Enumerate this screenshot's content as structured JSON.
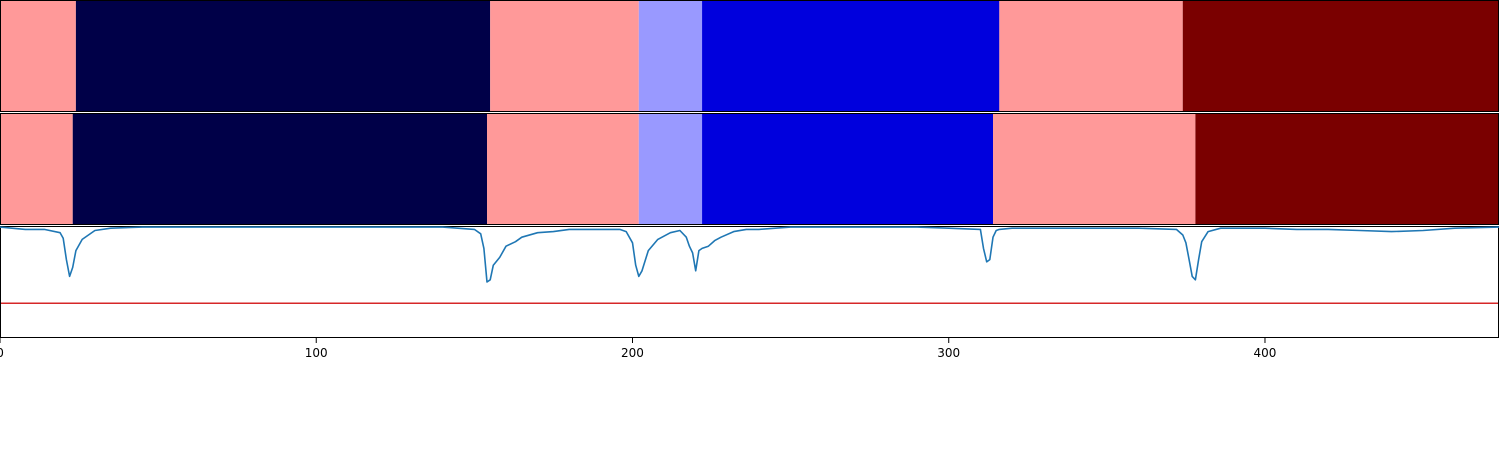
{
  "chart_data": [
    {
      "type": "heatmap",
      "panel": "top-band",
      "segments": [
        {
          "start": 0,
          "end": 24,
          "color": "#ff9999"
        },
        {
          "start": 24,
          "end": 155,
          "color": "#000048"
        },
        {
          "start": 155,
          "end": 202,
          "color": "#ff9999"
        },
        {
          "start": 202,
          "end": 222,
          "color": "#9999ff"
        },
        {
          "start": 222,
          "end": 316,
          "color": "#0000dd"
        },
        {
          "start": 316,
          "end": 374,
          "color": "#ff9999"
        },
        {
          "start": 374,
          "end": 474,
          "color": "#7a0000"
        }
      ]
    },
    {
      "type": "heatmap",
      "panel": "middle-band",
      "segments": [
        {
          "start": 0,
          "end": 23,
          "color": "#ff9999"
        },
        {
          "start": 23,
          "end": 154,
          "color": "#000048"
        },
        {
          "start": 154,
          "end": 202,
          "color": "#ff9999"
        },
        {
          "start": 202,
          "end": 222,
          "color": "#9999ff"
        },
        {
          "start": 222,
          "end": 314,
          "color": "#0000dd"
        },
        {
          "start": 314,
          "end": 378,
          "color": "#ff9999"
        },
        {
          "start": 378,
          "end": 474,
          "color": "#7a0000"
        }
      ]
    },
    {
      "type": "line",
      "panel": "signal",
      "xlim": [
        0,
        474
      ],
      "ylim": [
        0,
        1
      ],
      "threshold": 0.31,
      "threshold_color": "#d62728",
      "line_color": "#1f77b4",
      "x": [
        0,
        8,
        14,
        19,
        20,
        21,
        22,
        23,
        24,
        26,
        30,
        35,
        45,
        60,
        80,
        100,
        120,
        140,
        150,
        152,
        153,
        154,
        155,
        156,
        158,
        160,
        163,
        165,
        170,
        175,
        180,
        190,
        196,
        198,
        200,
        201,
        202,
        203,
        205,
        208,
        212,
        215,
        217,
        218,
        219,
        220,
        221,
        222,
        224,
        226,
        228,
        232,
        236,
        240,
        250,
        270,
        290,
        300,
        310,
        311,
        312,
        313,
        314,
        315,
        316,
        320,
        340,
        360,
        372,
        374,
        375,
        376,
        377,
        378,
        379,
        380,
        382,
        386,
        400,
        410,
        420,
        430,
        440,
        450,
        460,
        474
      ],
      "y": [
        0.99,
        0.97,
        0.97,
        0.94,
        0.89,
        0.7,
        0.55,
        0.63,
        0.78,
        0.88,
        0.96,
        0.98,
        0.99,
        0.99,
        0.99,
        0.99,
        0.99,
        0.99,
        0.97,
        0.93,
        0.8,
        0.5,
        0.52,
        0.65,
        0.72,
        0.82,
        0.86,
        0.9,
        0.94,
        0.95,
        0.97,
        0.97,
        0.97,
        0.95,
        0.85,
        0.65,
        0.55,
        0.6,
        0.78,
        0.88,
        0.94,
        0.96,
        0.9,
        0.82,
        0.76,
        0.6,
        0.78,
        0.8,
        0.82,
        0.87,
        0.9,
        0.95,
        0.97,
        0.97,
        0.99,
        0.99,
        0.99,
        0.98,
        0.97,
        0.8,
        0.68,
        0.7,
        0.9,
        0.96,
        0.97,
        0.98,
        0.98,
        0.98,
        0.97,
        0.92,
        0.85,
        0.7,
        0.55,
        0.52,
        0.7,
        0.86,
        0.95,
        0.98,
        0.98,
        0.97,
        0.97,
        0.96,
        0.95,
        0.96,
        0.98,
        0.99
      ]
    }
  ],
  "axis": {
    "ticks": [
      {
        "value": 0,
        "label": "0"
      },
      {
        "value": 100,
        "label": "100"
      },
      {
        "value": 200,
        "label": "200"
      },
      {
        "value": 300,
        "label": "300"
      },
      {
        "value": 400,
        "label": "400"
      }
    ]
  }
}
